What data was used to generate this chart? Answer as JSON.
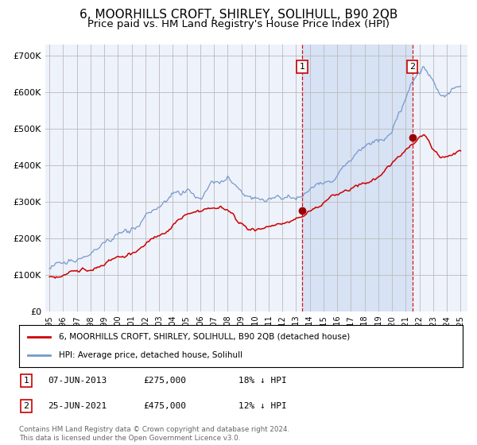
{
  "title": "6, MOORHILLS CROFT, SHIRLEY, SOLIHULL, B90 2QB",
  "subtitle": "Price paid vs. HM Land Registry's House Price Index (HPI)",
  "title_fontsize": 11,
  "subtitle_fontsize": 9.5,
  "background_color": "#ffffff",
  "plot_bg_color": "#eef2fb",
  "plot_bg_color2": "#dde8f8",
  "grid_color": "#bbbbbb",
  "ylabel_vals": [
    0,
    100000,
    200000,
    300000,
    400000,
    500000,
    600000,
    700000
  ],
  "ylabel_labels": [
    "£0",
    "£100K",
    "£200K",
    "£300K",
    "£400K",
    "£500K",
    "£600K",
    "£700K"
  ],
  "ylim": [
    0,
    730000
  ],
  "legend1_label": "6, MOORHILLS CROFT, SHIRLEY, SOLIHULL, B90 2QB (detached house)",
  "legend2_label": "HPI: Average price, detached house, Solihull",
  "legend1_color": "#cc0000",
  "legend2_color": "#7799cc",
  "sale1_date": "07-JUN-2013",
  "sale1_price": 275000,
  "sale1_pct": "18%",
  "sale2_date": "25-JUN-2021",
  "sale2_price": 475000,
  "sale2_pct": "12%",
  "footnote": "Contains HM Land Registry data © Crown copyright and database right 2024.\nThis data is licensed under the Open Government Licence v3.0.",
  "sale1_x": 2013.44,
  "sale2_x": 2021.48,
  "marker_color": "#990000",
  "dashed_line_color": "#cc0000",
  "shade_color": "#c8d8f0"
}
